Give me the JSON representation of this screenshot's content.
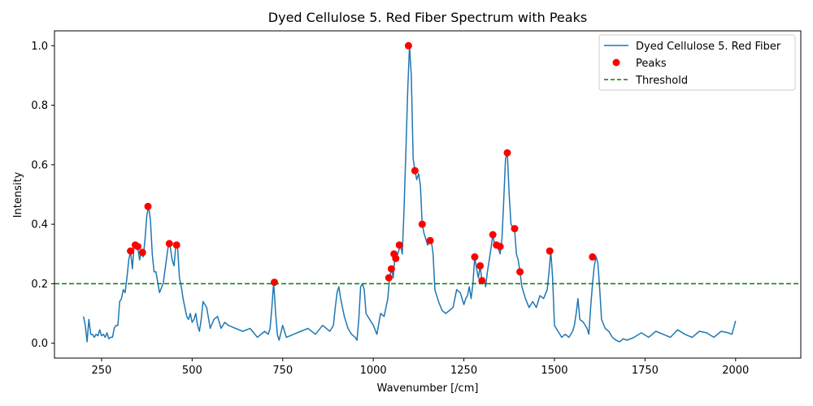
{
  "chart_data": {
    "type": "line",
    "title": "Dyed Cellulose 5. Red Fiber Spectrum with Peaks",
    "xlabel": "Wavenumber [/cm]",
    "ylabel": "Intensity",
    "xlim": [
      120,
      2180
    ],
    "ylim": [
      -0.05,
      1.05
    ],
    "xticks": [
      250,
      500,
      750,
      1000,
      1250,
      1500,
      1750,
      2000
    ],
    "yticks": [
      0.0,
      0.2,
      0.4,
      0.6,
      0.8,
      1.0
    ],
    "grid": false,
    "legend_position": "top-right",
    "series": [
      {
        "name": "Dyed Cellulose 5. Red Fiber",
        "kind": "line",
        "color": "#1f77b4",
        "x": [
          200,
          205,
          210,
          215,
          220,
          225,
          230,
          235,
          240,
          245,
          250,
          255,
          260,
          265,
          270,
          275,
          280,
          285,
          290,
          295,
          300,
          305,
          310,
          315,
          320,
          325,
          330,
          335,
          340,
          345,
          350,
          355,
          360,
          365,
          370,
          375,
          380,
          385,
          390,
          395,
          400,
          410,
          420,
          430,
          435,
          440,
          445,
          450,
          455,
          460,
          465,
          470,
          475,
          480,
          485,
          490,
          495,
          500,
          505,
          510,
          515,
          520,
          525,
          530,
          540,
          550,
          560,
          570,
          580,
          590,
          600,
          620,
          640,
          660,
          680,
          700,
          710,
          715,
          720,
          725,
          730,
          735,
          740,
          750,
          760,
          780,
          800,
          820,
          840,
          860,
          880,
          890,
          895,
          900,
          905,
          910,
          920,
          930,
          940,
          950,
          955,
          960,
          965,
          970,
          975,
          980,
          990,
          1000,
          1010,
          1020,
          1030,
          1040,
          1045,
          1050,
          1055,
          1060,
          1065,
          1070,
          1075,
          1080,
          1085,
          1090,
          1095,
          1100,
          1105,
          1110,
          1115,
          1120,
          1125,
          1130,
          1135,
          1140,
          1145,
          1150,
          1155,
          1160,
          1165,
          1170,
          1180,
          1190,
          1200,
          1210,
          1220,
          1230,
          1240,
          1250,
          1255,
          1260,
          1265,
          1270,
          1275,
          1280,
          1285,
          1290,
          1295,
          1300,
          1305,
          1310,
          1315,
          1320,
          1325,
          1330,
          1335,
          1340,
          1345,
          1350,
          1355,
          1360,
          1365,
          1370,
          1375,
          1380,
          1385,
          1390,
          1395,
          1400,
          1405,
          1410,
          1420,
          1430,
          1440,
          1450,
          1460,
          1470,
          1480,
          1485,
          1490,
          1495,
          1500,
          1510,
          1520,
          1530,
          1540,
          1550,
          1555,
          1560,
          1565,
          1570,
          1580,
          1590,
          1595,
          1600,
          1605,
          1610,
          1615,
          1620,
          1625,
          1630,
          1640,
          1650,
          1660,
          1670,
          1680,
          1690,
          1700,
          1720,
          1740,
          1760,
          1780,
          1800,
          1820,
          1840,
          1860,
          1880,
          1900,
          1920,
          1940,
          1960,
          1980,
          1990,
          2000
        ],
        "y": [
          0.09,
          0.06,
          0.005,
          0.08,
          0.03,
          0.03,
          0.02,
          0.03,
          0.025,
          0.045,
          0.025,
          0.03,
          0.02,
          0.035,
          0.015,
          0.02,
          0.02,
          0.05,
          0.06,
          0.06,
          0.14,
          0.15,
          0.18,
          0.17,
          0.22,
          0.28,
          0.31,
          0.25,
          0.33,
          0.33,
          0.32,
          0.28,
          0.31,
          0.29,
          0.35,
          0.43,
          0.46,
          0.41,
          0.3,
          0.24,
          0.24,
          0.17,
          0.2,
          0.29,
          0.335,
          0.32,
          0.28,
          0.26,
          0.33,
          0.32,
          0.22,
          0.19,
          0.15,
          0.12,
          0.09,
          0.08,
          0.1,
          0.07,
          0.08,
          0.1,
          0.06,
          0.04,
          0.08,
          0.14,
          0.12,
          0.05,
          0.08,
          0.09,
          0.05,
          0.07,
          0.06,
          0.05,
          0.04,
          0.05,
          0.02,
          0.04,
          0.03,
          0.05,
          0.12,
          0.205,
          0.11,
          0.03,
          0.01,
          0.06,
          0.02,
          0.03,
          0.04,
          0.05,
          0.03,
          0.06,
          0.04,
          0.06,
          0.12,
          0.17,
          0.19,
          0.15,
          0.09,
          0.05,
          0.03,
          0.02,
          0.01,
          0.08,
          0.19,
          0.2,
          0.18,
          0.1,
          0.08,
          0.06,
          0.03,
          0.1,
          0.09,
          0.15,
          0.22,
          0.25,
          0.22,
          0.3,
          0.29,
          0.31,
          0.33,
          0.3,
          0.45,
          0.65,
          0.85,
          1.0,
          0.9,
          0.62,
          0.58,
          0.55,
          0.57,
          0.53,
          0.4,
          0.37,
          0.35,
          0.33,
          0.34,
          0.345,
          0.3,
          0.18,
          0.14,
          0.11,
          0.1,
          0.11,
          0.12,
          0.18,
          0.17,
          0.13,
          0.15,
          0.16,
          0.19,
          0.15,
          0.2,
          0.29,
          0.25,
          0.22,
          0.26,
          0.21,
          0.22,
          0.19,
          0.24,
          0.28,
          0.32,
          0.365,
          0.33,
          0.32,
          0.32,
          0.3,
          0.35,
          0.48,
          0.62,
          0.64,
          0.5,
          0.4,
          0.39,
          0.38,
          0.3,
          0.28,
          0.24,
          0.19,
          0.15,
          0.12,
          0.14,
          0.12,
          0.16,
          0.15,
          0.18,
          0.24,
          0.31,
          0.22,
          0.06,
          0.04,
          0.02,
          0.03,
          0.02,
          0.04,
          0.06,
          0.1,
          0.15,
          0.08,
          0.07,
          0.05,
          0.03,
          0.12,
          0.2,
          0.26,
          0.29,
          0.27,
          0.18,
          0.08,
          0.05,
          0.04,
          0.02,
          0.01,
          0.005,
          0.015,
          0.01,
          0.02,
          0.035,
          0.02,
          0.04,
          0.03,
          0.02,
          0.045,
          0.03,
          0.02,
          0.04,
          0.035,
          0.02,
          0.04,
          0.035,
          0.03,
          0.075
        ]
      },
      {
        "name": "Peaks",
        "kind": "scatter",
        "color": "#ff0000",
        "x": [
          330,
          343,
          350,
          363,
          378,
          437,
          457,
          727,
          1043,
          1050,
          1057,
          1062,
          1072,
          1097,
          1115,
          1135,
          1157,
          1280,
          1295,
          1300,
          1330,
          1340,
          1350,
          1370,
          1390,
          1405,
          1487,
          1605
        ],
        "y": [
          0.31,
          0.33,
          0.325,
          0.305,
          0.46,
          0.335,
          0.33,
          0.205,
          0.22,
          0.25,
          0.3,
          0.285,
          0.33,
          1.0,
          0.58,
          0.4,
          0.345,
          0.29,
          0.26,
          0.21,
          0.365,
          0.33,
          0.325,
          0.64,
          0.385,
          0.24,
          0.31,
          0.29
        ]
      },
      {
        "name": "Threshold",
        "kind": "hline",
        "color": "#008000",
        "y": 0.2
      }
    ]
  }
}
